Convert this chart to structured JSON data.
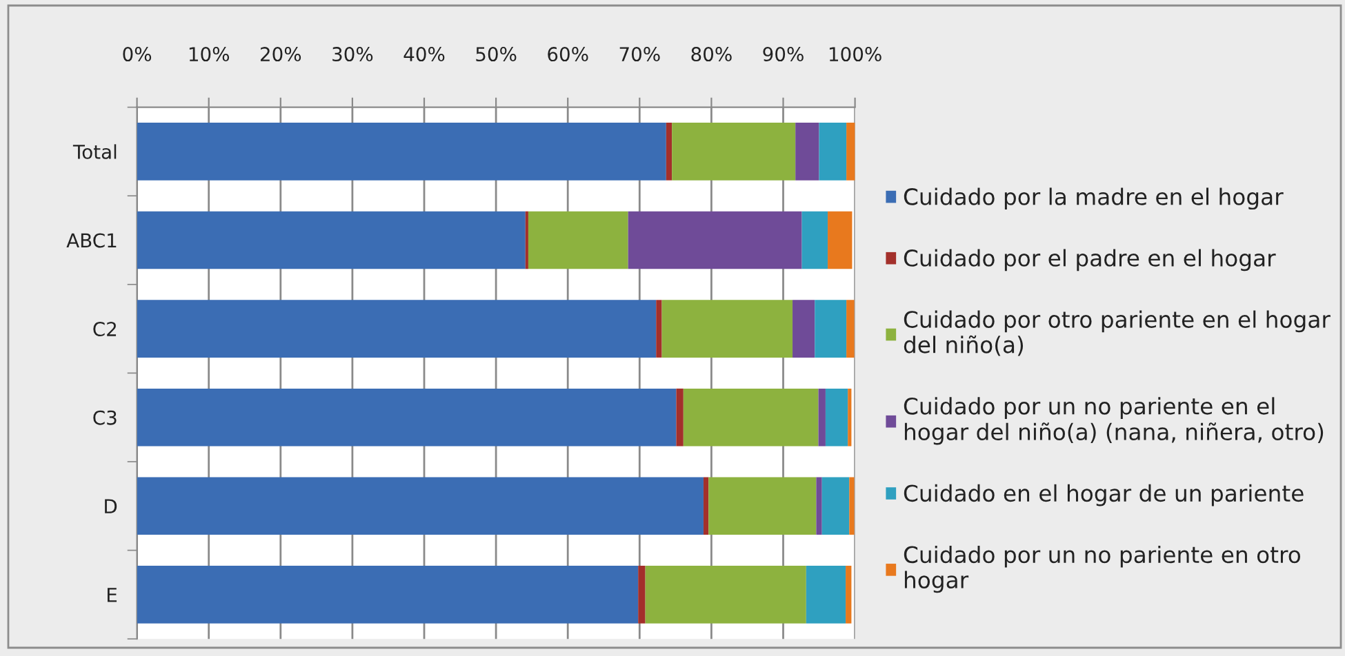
{
  "chart_data": {
    "type": "bar",
    "orientation": "horizontal",
    "stacked": true,
    "categories": [
      "Total",
      "ABC1",
      "C2",
      "C3",
      "D",
      "E"
    ],
    "series": [
      {
        "name": "Cuidado por la madre en el hogar",
        "color": "#3b6db4",
        "values": [
          73.7,
          54.1,
          72.3,
          75.1,
          78.9,
          69.8
        ]
      },
      {
        "name": "Cuidado por el padre en el hogar",
        "color": "#a3302b",
        "values": [
          0.8,
          0.4,
          0.8,
          1.0,
          0.7,
          1.0
        ]
      },
      {
        "name": "Cuidado por otro pariente en el hogar\ndel niño(a)",
        "color": "#8db23f",
        "values": [
          17.2,
          13.9,
          18.2,
          18.8,
          15.0,
          22.4
        ]
      },
      {
        "name": "Cuidado por un no pariente en el\nhogar del niño(a) (nana, niñera, otro)",
        "color": "#6f4b98",
        "values": [
          3.3,
          24.2,
          3.1,
          1.0,
          0.8,
          null
        ]
      },
      {
        "name": "Cuidado en el hogar de un pariente",
        "color": "#2fa0c0",
        "values": [
          3.8,
          3.6,
          4.4,
          3.1,
          3.8,
          5.5
        ]
      },
      {
        "name": "Cuidado por un no pariente en otro\nhogar",
        "color": "#e8791e",
        "values": [
          1.2,
          3.4,
          1.1,
          0.5,
          0.7,
          0.8
        ]
      }
    ],
    "xlim": [
      0,
      100
    ],
    "xticks": [
      {
        "value": 0,
        "label": "0%"
      },
      {
        "value": 10,
        "label": "10%"
      },
      {
        "value": 20,
        "label": "20%"
      },
      {
        "value": 30,
        "label": "30%"
      },
      {
        "value": 40,
        "label": "40%"
      },
      {
        "value": 50,
        "label": "50%"
      },
      {
        "value": 60,
        "label": "60%"
      },
      {
        "value": 70,
        "label": "70%"
      },
      {
        "value": 80,
        "label": "80%"
      },
      {
        "value": 90,
        "label": "90%"
      },
      {
        "value": 100,
        "label": "100%"
      }
    ],
    "grid": "x",
    "legend": "right"
  }
}
